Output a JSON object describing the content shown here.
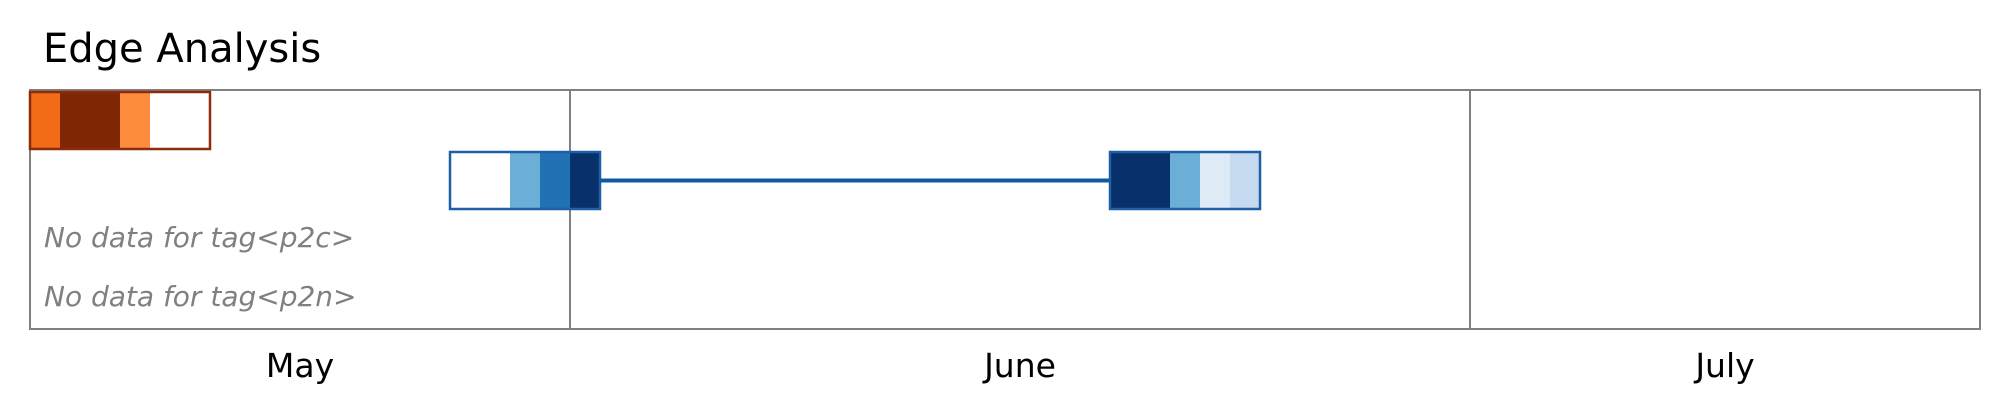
{
  "chart_data": {
    "type": "heatmap",
    "title": "Edge Analysis",
    "x_axis": {
      "months": [
        {
          "label": "May",
          "start": "2024-05-01",
          "end": "2024-05-31"
        },
        {
          "label": "June",
          "start": "2024-06-01",
          "end": "2024-06-30"
        },
        {
          "label": "July",
          "start": "2024-07-01",
          "end": "2024-07-31"
        }
      ],
      "range": [
        "2024-05-14",
        "2024-07-17"
      ]
    },
    "rows": [
      {
        "name": "",
        "stroke": "#8b2c0c",
        "blocks": [
          {
            "cells": [
              {
                "date": "2024-05-14",
                "color": "#f26b18"
              },
              {
                "date": "2024-05-15",
                "color": "#7f2704"
              },
              {
                "date": "2024-05-16",
                "color": "#7f2704"
              },
              {
                "date": "2024-05-17",
                "color": "#fd8d3c"
              },
              {
                "date": "2024-05-18",
                "color": "#ffffff"
              },
              {
                "date": "2024-05-19",
                "color": "#ffffff"
              }
            ]
          }
        ]
      },
      {
        "name": "",
        "stroke": "#1f5fa8",
        "blocks": [
          {
            "cells": [
              {
                "date": "2024-05-28",
                "color": "#ffffff"
              },
              {
                "date": "2024-05-29",
                "color": "#ffffff"
              },
              {
                "date": "2024-05-30",
                "color": "#6baed6"
              },
              {
                "date": "2024-05-31",
                "color": "#2171b5"
              },
              {
                "date": "2024-06-01",
                "color": "#08306b"
              }
            ]
          },
          {
            "cells": [
              {
                "date": "2024-06-19",
                "color": "#08306b"
              },
              {
                "date": "2024-06-20",
                "color": "#08306b"
              },
              {
                "date": "2024-06-21",
                "color": "#6baed6"
              },
              {
                "date": "2024-06-22",
                "color": "#deebf7"
              },
              {
                "date": "2024-06-23",
                "color": "#c6dbef"
              }
            ]
          }
        ],
        "connector_color": "#0f5aa0"
      },
      {
        "name": "",
        "no_data_text": "No data for tag<p2c>",
        "blocks": []
      },
      {
        "name": "",
        "no_data_text": "No data for tag<p2n>",
        "blocks": []
      }
    ],
    "colors": {
      "frame": "#808080",
      "no_data_text": "#808080"
    },
    "grid": false,
    "legend": "none"
  }
}
